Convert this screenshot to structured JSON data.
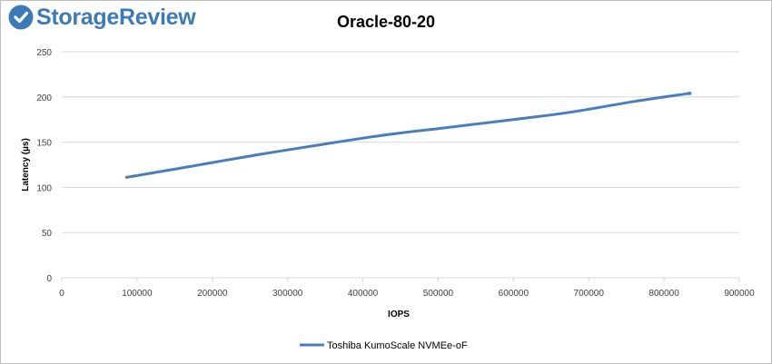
{
  "logo": {
    "text": "StorageReview"
  },
  "chart_data": {
    "type": "line",
    "title": "Oracle-80-20",
    "xlabel": "IOPS",
    "ylabel": "Latency (µs)",
    "xlim": [
      0,
      900000
    ],
    "ylim": [
      0,
      250
    ],
    "x_ticks": [
      0,
      100000,
      200000,
      300000,
      400000,
      500000,
      600000,
      700000,
      800000,
      900000
    ],
    "y_ticks": [
      0,
      50,
      100,
      150,
      200,
      250
    ],
    "grid": "horizontal",
    "legend_position": "bottom",
    "series": [
      {
        "name": "Toshiba KumoScale NVMEe-oF",
        "color": "#4a7ebb",
        "x": [
          86000,
          170000,
          260000,
          350000,
          430000,
          510000,
          590000,
          675000,
          760000,
          834000
        ],
        "y": [
          111,
          123,
          136,
          148,
          158,
          166,
          174,
          183,
          195,
          204
        ]
      }
    ]
  }
}
